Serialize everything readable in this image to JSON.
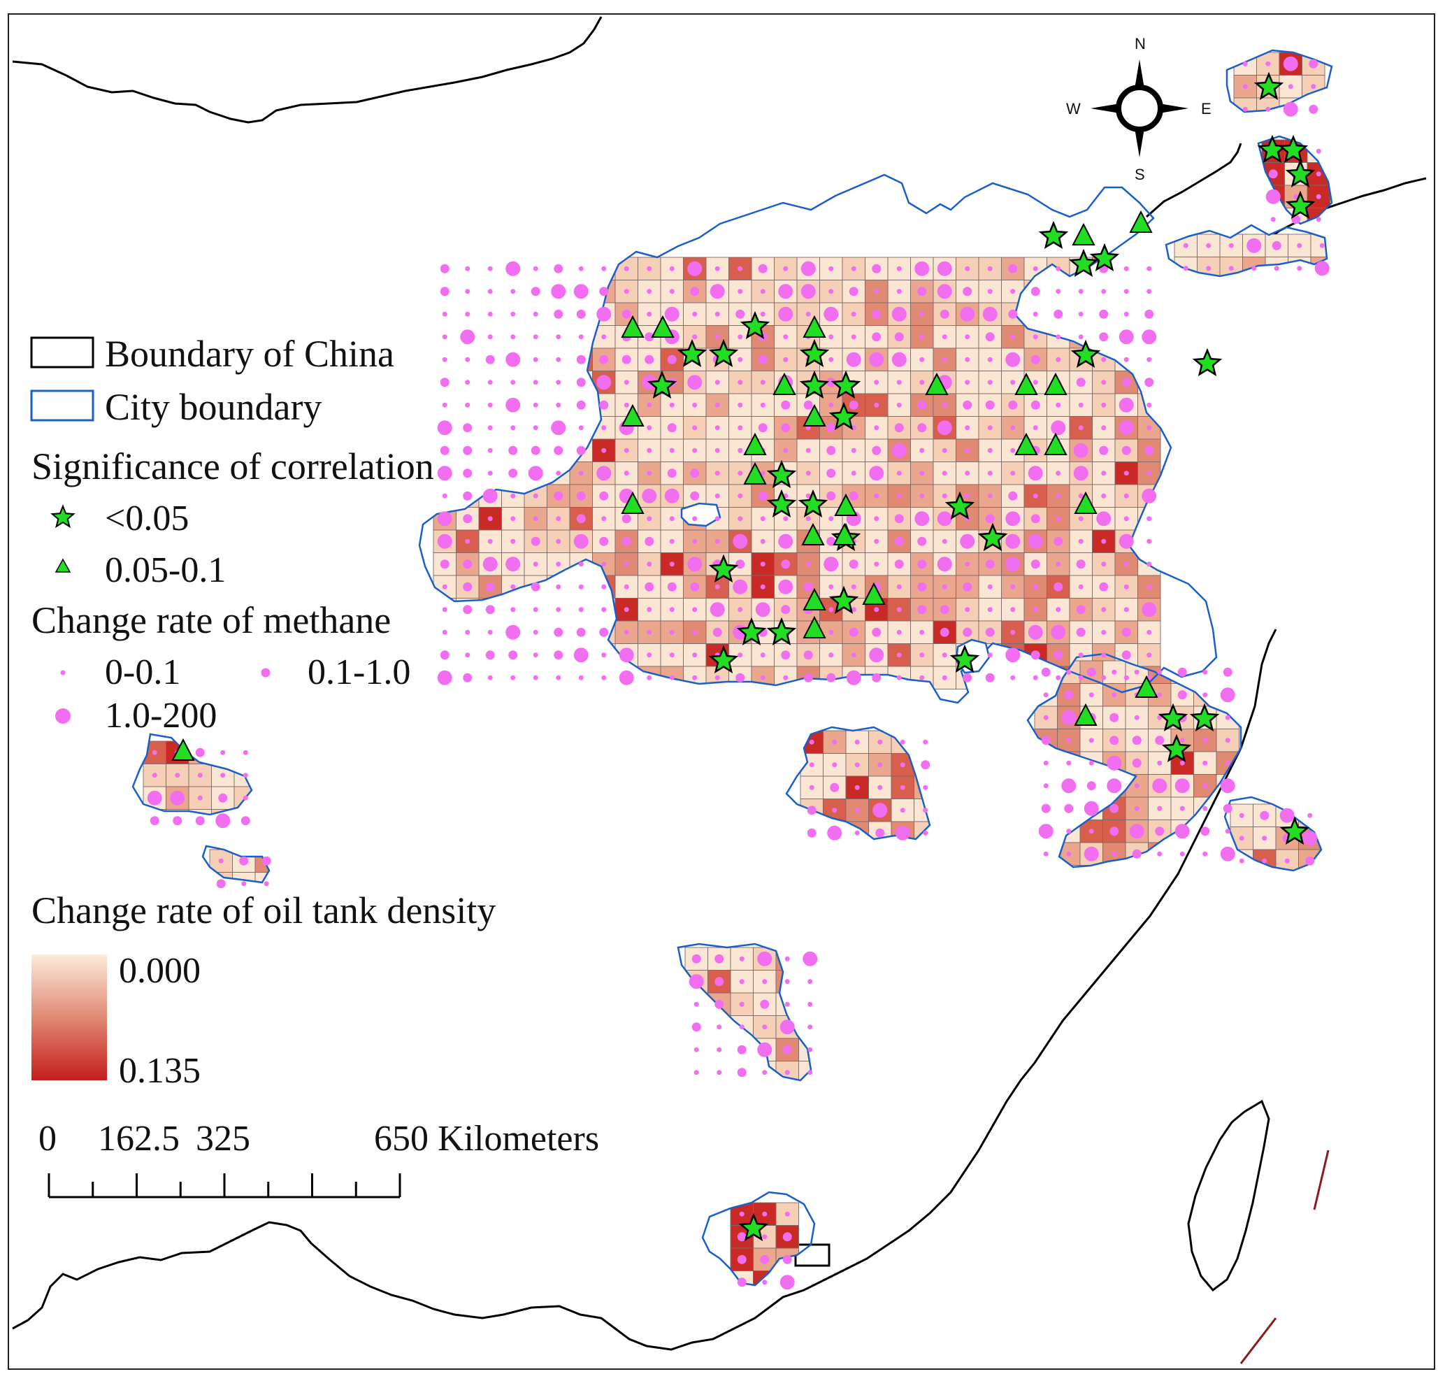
{
  "legend": {
    "boundary_china": "Boundary of China",
    "city_boundary": "City boundary",
    "significance_title": "Significance of correlation",
    "sig_star": "<0.05",
    "sig_triangle": "0.05-0.1",
    "methane_title": "Change rate of methane",
    "methane_small": "0-0.1",
    "methane_medium": "0.1-1.0",
    "methane_large": "1.0-200",
    "oil_title": "Change rate of oil tank density",
    "oil_min": "0.000",
    "oil_max": "0.135"
  },
  "scale_bar": {
    "tick0": "0",
    "tick1": "162.5",
    "tick2": "325",
    "tick3": "650 Kilometers"
  },
  "compass": {
    "north": "N",
    "south": "S",
    "east": "E",
    "west": "W"
  },
  "colors": {
    "china_boundary": "#000000",
    "city_boundary": "#1a5fc8",
    "methane_dot": "#f26ef0",
    "significance_fill": "#22dd22",
    "oil_low": "#fbe7d6",
    "oil_high": "#c42020"
  }
}
